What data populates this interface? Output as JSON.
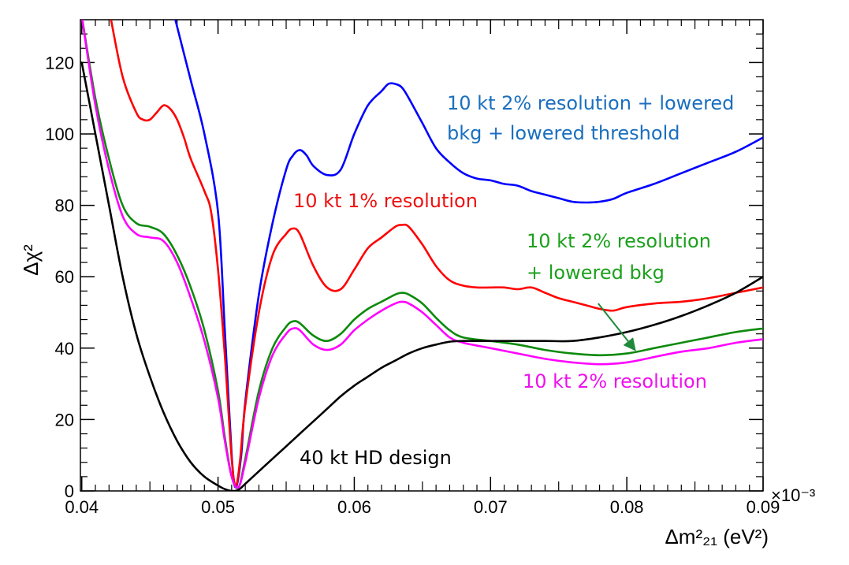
{
  "chart_data": {
    "type": "line",
    "title": "",
    "xlabel": "Δm²₂₁ (eV²)",
    "ylabel": "Δχ²",
    "x_multiplier": "×10⁻³",
    "xlim": [
      0.0399,
      0.09
    ],
    "ylim": [
      0,
      132
    ],
    "xticks": [
      0.04,
      0.05,
      0.06,
      0.07,
      0.08,
      0.09
    ],
    "xtick_labels": [
      "0.04",
      "0.05",
      "0.06",
      "0.07",
      "0.08",
      "0.09"
    ],
    "yticks": [
      0,
      20,
      40,
      60,
      80,
      100,
      120
    ],
    "ytick_labels": [
      "0",
      "20",
      "40",
      "60",
      "80",
      "100",
      "120"
    ],
    "grid": false,
    "series": [
      {
        "name": "10 kt 2% resolution + lowered bkg + lowered threshold",
        "label_lines": [
          "10 kt 2% resolution + lowered",
          "bkg + lowered threshold"
        ],
        "color": "#0000ff",
        "label_color": "#1a6fbf",
        "x": [
          0.0468,
          0.048,
          0.049,
          0.05,
          0.0505,
          0.051,
          0.0513,
          0.0517,
          0.052,
          0.053,
          0.054,
          0.055,
          0.0555,
          0.056,
          0.0565,
          0.057,
          0.058,
          0.059,
          0.06,
          0.061,
          0.062,
          0.0625,
          0.063,
          0.0635,
          0.064,
          0.065,
          0.066,
          0.067,
          0.068,
          0.069,
          0.07,
          0.071,
          0.072,
          0.073,
          0.074,
          0.075,
          0.076,
          0.077,
          0.078,
          0.079,
          0.08,
          0.082,
          0.084,
          0.086,
          0.088,
          0.09
        ],
        "y": [
          133,
          115,
          100,
          78,
          45,
          10,
          1,
          10,
          25,
          55,
          75,
          90,
          94,
          95.5,
          94,
          91,
          88.5,
          90,
          100,
          108,
          112,
          114,
          114,
          113,
          110,
          103,
          96,
          92,
          89,
          87.5,
          87,
          86,
          85.5,
          84,
          83,
          82,
          81,
          80.8,
          81,
          81.8,
          83.5,
          86,
          89,
          92,
          95,
          99
        ]
      },
      {
        "name": "10 kt 1% resolution",
        "label_lines": [
          "10 kt 1% resolution"
        ],
        "color": "#ff0000",
        "label_color": "#ee1111",
        "x": [
          0.0421,
          0.043,
          0.044,
          0.0445,
          0.045,
          0.0455,
          0.046,
          0.0465,
          0.047,
          0.0475,
          0.048,
          0.049,
          0.0495,
          0.05,
          0.0505,
          0.051,
          0.0513,
          0.0516,
          0.052,
          0.053,
          0.054,
          0.055,
          0.0555,
          0.056,
          0.057,
          0.058,
          0.059,
          0.06,
          0.061,
          0.062,
          0.063,
          0.0635,
          0.064,
          0.065,
          0.066,
          0.067,
          0.068,
          0.069,
          0.07,
          0.071,
          0.072,
          0.073,
          0.074,
          0.075,
          0.076,
          0.077,
          0.078,
          0.079,
          0.08,
          0.082,
          0.084,
          0.086,
          0.088,
          0.09
        ],
        "y": [
          133,
          116,
          106,
          104,
          104,
          106,
          108,
          107,
          104,
          99,
          93,
          84,
          78,
          62,
          38,
          9,
          1.5,
          8,
          24,
          50,
          66,
          72,
          73.5,
          72,
          63,
          57,
          56.5,
          62,
          68,
          71,
          74,
          74.5,
          74,
          69,
          63,
          59,
          57.5,
          57,
          57,
          57,
          56.5,
          57,
          55.5,
          54,
          53,
          52,
          51,
          50.5,
          51.5,
          52.5,
          53,
          54,
          55.5,
          57
        ]
      },
      {
        "name": "10 kt 2% resolution + lowered bkg",
        "label_lines": [
          "10 kt 2% resolution",
          "+ lowered bkg"
        ],
        "color": "#0d8a0d",
        "label_color": "#1ca01c",
        "x": [
          0.04,
          0.041,
          0.042,
          0.043,
          0.044,
          0.045,
          0.046,
          0.047,
          0.048,
          0.049,
          0.05,
          0.0505,
          0.051,
          0.0515,
          0.052,
          0.053,
          0.054,
          0.055,
          0.0555,
          0.056,
          0.057,
          0.058,
          0.059,
          0.06,
          0.061,
          0.062,
          0.063,
          0.0635,
          0.064,
          0.065,
          0.066,
          0.067,
          0.068,
          0.07,
          0.072,
          0.074,
          0.076,
          0.078,
          0.08,
          0.082,
          0.084,
          0.086,
          0.088,
          0.09
        ],
        "y": [
          133,
          110,
          93,
          80,
          75,
          74,
          72,
          66,
          57,
          45,
          28,
          15,
          4,
          1,
          9,
          28,
          40,
          46,
          47.5,
          47,
          43.5,
          42,
          44,
          48,
          51,
          53,
          55,
          55.5,
          55,
          52.5,
          48.5,
          45,
          43,
          42,
          41,
          39.5,
          38.5,
          38,
          38.5,
          40,
          41.5,
          43,
          44.5,
          45.5
        ]
      },
      {
        "name": "10 kt 2% resolution",
        "label_lines": [
          "10 kt 2% resolution"
        ],
        "color": "#ff00ff",
        "label_color": "#ee11ee",
        "x": [
          0.04,
          0.041,
          0.042,
          0.043,
          0.044,
          0.045,
          0.046,
          0.047,
          0.048,
          0.049,
          0.05,
          0.0505,
          0.051,
          0.0515,
          0.052,
          0.053,
          0.054,
          0.055,
          0.0555,
          0.056,
          0.057,
          0.058,
          0.059,
          0.06,
          0.061,
          0.062,
          0.063,
          0.0635,
          0.064,
          0.065,
          0.066,
          0.067,
          0.068,
          0.07,
          0.072,
          0.074,
          0.076,
          0.078,
          0.08,
          0.082,
          0.084,
          0.086,
          0.088,
          0.09
        ],
        "y": [
          133,
          108,
          90,
          77,
          72,
          71,
          70,
          64,
          54,
          42,
          26,
          14,
          4,
          1,
          8,
          26,
          38,
          44,
          45.5,
          45,
          41,
          39.5,
          41,
          45,
          48,
          50.5,
          52.5,
          53,
          52.5,
          50,
          46.5,
          43,
          41.5,
          40,
          38.5,
          37,
          36,
          35.5,
          36,
          37.5,
          39,
          40,
          41.5,
          42.5
        ]
      },
      {
        "name": "40 kt HD design",
        "label_lines": [
          "40 kt HD design"
        ],
        "color": "#000000",
        "label_color": "#000000",
        "x": [
          0.04,
          0.041,
          0.042,
          0.043,
          0.044,
          0.045,
          0.046,
          0.047,
          0.048,
          0.049,
          0.05,
          0.0505,
          0.051,
          0.0515,
          0.052,
          0.053,
          0.054,
          0.055,
          0.056,
          0.057,
          0.058,
          0.059,
          0.06,
          0.061,
          0.062,
          0.063,
          0.064,
          0.065,
          0.066,
          0.067,
          0.068,
          0.07,
          0.072,
          0.074,
          0.076,
          0.078,
          0.08,
          0.082,
          0.084,
          0.086,
          0.088,
          0.09
        ],
        "y": [
          120,
          100,
          80,
          60,
          44,
          32,
          22,
          14,
          8,
          4,
          1.5,
          0.5,
          0,
          0.3,
          2,
          5.5,
          9,
          12.5,
          16,
          19.5,
          23,
          26.5,
          29.5,
          32,
          34.5,
          36.5,
          38.5,
          40,
          41,
          41.8,
          42,
          42,
          42,
          42,
          42,
          43,
          44.5,
          46.5,
          49,
          52,
          55.5,
          60
        ]
      }
    ],
    "annotations": [
      {
        "text": "10 kt 2% resolution + lowered",
        "series": 0
      },
      {
        "text": "bkg + lowered threshold",
        "series": 0
      },
      {
        "text": "10 kt 1% resolution",
        "series": 1
      },
      {
        "text": "10 kt 2% resolution",
        "series": 2
      },
      {
        "text": "+ lowered bkg",
        "series": 2
      },
      {
        "text": "10 kt 2% resolution",
        "series": 3
      },
      {
        "text": "40 kt HD design",
        "series": 4
      }
    ],
    "arrow": {
      "from": [
        0.0779,
        52.5
      ],
      "to": [
        0.0806,
        39.5
      ],
      "color": "#1f8a3a"
    }
  }
}
